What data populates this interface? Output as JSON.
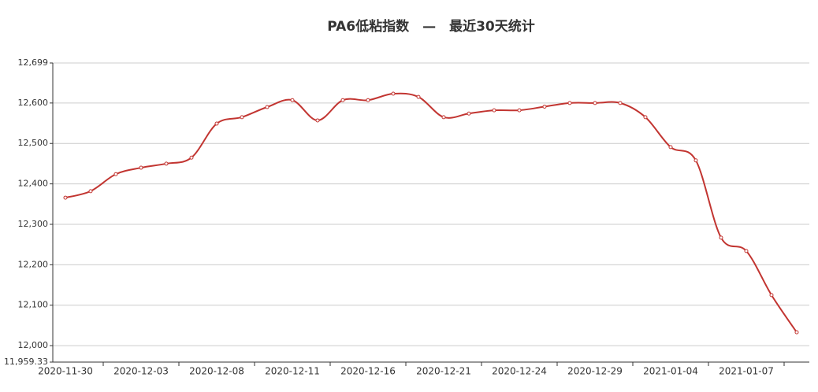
{
  "chart_data": {
    "type": "line",
    "title": "PA6低粘指数　—　最近30天统计",
    "categories": [
      "2020-11-30",
      null,
      null,
      "2020-12-03",
      null,
      null,
      "2020-12-08",
      null,
      null,
      "2020-12-11",
      null,
      null,
      "2020-12-16",
      null,
      null,
      "2020-12-21",
      null,
      null,
      "2020-12-24",
      null,
      null,
      "2020-12-29",
      null,
      null,
      "2021-01-04",
      null,
      null,
      "2021-01-07",
      null,
      null
    ],
    "series": [
      {
        "color": "#c23531",
        "values": [
          12366,
          12382,
          12424,
          12440,
          12450,
          12465,
          12549,
          12565,
          12590,
          12607,
          12557,
          12607,
          12607,
          12623,
          12615,
          12565,
          12574,
          12582,
          12582,
          12591,
          12600,
          12600,
          12600,
          12565,
          12491,
          12458,
          12267,
          12234,
          12125,
          12033
        ]
      }
    ],
    "ylim": [
      11959.33,
      12699
    ],
    "yticks": [
      {
        "value": 11959.33,
        "label": "11,959.33"
      },
      {
        "value": 12000,
        "label": "12,000"
      },
      {
        "value": 12100,
        "label": "12,100"
      },
      {
        "value": 12200,
        "label": "12,200"
      },
      {
        "value": 12300,
        "label": "12,300"
      },
      {
        "value": 12400,
        "label": "12,400"
      },
      {
        "value": 12500,
        "label": "12,500"
      },
      {
        "value": 12600,
        "label": "12,600"
      },
      {
        "value": 12699,
        "label": "12,699"
      }
    ],
    "grid": true
  }
}
